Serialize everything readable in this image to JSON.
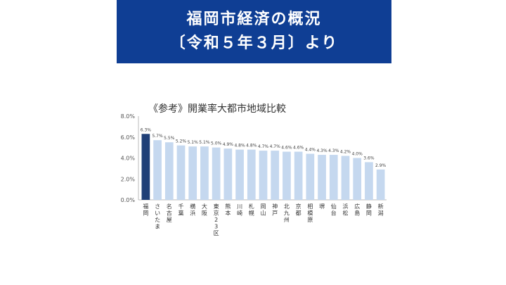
{
  "banner": {
    "line1": "福岡市経済の概況",
    "line2": "〔令和５年３月〕より"
  },
  "colors": {
    "banner_bg": "#0f3e94",
    "highlight_bar": "#1f3f77",
    "normal_bar": "#c5d8ef"
  },
  "chart_data": {
    "type": "bar",
    "title": "《参考》開業率大都市地域比較",
    "categories": [
      "福岡",
      "さいたま",
      "名古屋",
      "千葉",
      "横浜",
      "大阪",
      "東京23区",
      "熊本",
      "川崎",
      "札幌",
      "岡山",
      "神戸",
      "北九州",
      "京都",
      "相模原",
      "堺",
      "仙台",
      "浜松",
      "広島",
      "静岡",
      "新潟"
    ],
    "values": [
      6.3,
      5.7,
      5.5,
      5.2,
      5.1,
      5.1,
      5.0,
      4.9,
      4.8,
      4.8,
      4.7,
      4.7,
      4.6,
      4.6,
      4.4,
      4.3,
      4.3,
      4.2,
      4.0,
      3.6,
      2.9
    ],
    "data_labels": [
      "6.3%",
      "5.7%",
      "5.5%",
      "5.2%",
      "5.1%",
      "5.1%",
      "5.0%",
      "4.9%",
      "4.8%",
      "4.8%",
      "4.7%",
      "4.7%",
      "4.6%",
      "4.6%",
      "4.4%",
      "4.3%",
      "4.3%",
      "4.2%",
      "4.0%",
      "3.6%",
      "2.9%"
    ],
    "highlight_index": 0,
    "yticks": [
      "0.0%",
      "2.0%",
      "4.0%",
      "6.0%",
      "8.0%"
    ],
    "ytick_values": [
      0,
      2,
      4,
      6,
      8
    ],
    "ylim": [
      0,
      8
    ],
    "grid": false,
    "xlabel": "",
    "ylabel": ""
  }
}
